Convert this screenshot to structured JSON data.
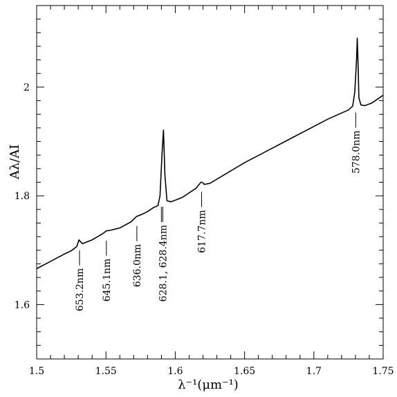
{
  "chart_data": {
    "type": "line",
    "title": "",
    "xlabel": "λ⁻¹(μm⁻¹)",
    "ylabel": "Aλ/AI",
    "xlim": [
      1.5,
      1.75
    ],
    "ylim": [
      1.5,
      2.15
    ],
    "xticks": [
      1.5,
      1.55,
      1.6,
      1.65,
      1.7,
      1.75
    ],
    "xtick_labels": [
      "1.5",
      "1.55",
      "1.6",
      "1.65",
      "1.7",
      "1.75"
    ],
    "yticks": [
      1.6,
      1.8,
      2.0
    ],
    "ytick_labels": [
      "1.6",
      "1.8",
      "2"
    ],
    "grid": false,
    "series": [
      {
        "x": [
          1.5,
          1.52,
          1.525,
          1.529,
          1.5305,
          1.5315,
          1.533,
          1.54,
          1.548,
          1.5505,
          1.552,
          1.56,
          1.568,
          1.572,
          1.576,
          1.58,
          1.584,
          1.5875,
          1.589,
          1.5905,
          1.5915,
          1.5925,
          1.594,
          1.597,
          1.605,
          1.615,
          1.6185,
          1.6195,
          1.621,
          1.625,
          1.65,
          1.68,
          1.71,
          1.725,
          1.728,
          1.7295,
          1.7308,
          1.7313,
          1.7318,
          1.7325,
          1.734,
          1.737,
          1.742,
          1.75
        ],
        "y": [
          1.666,
          1.693,
          1.699,
          1.707,
          1.719,
          1.716,
          1.712,
          1.719,
          1.731,
          1.736,
          1.736,
          1.741,
          1.752,
          1.762,
          1.766,
          1.771,
          1.778,
          1.782,
          1.8,
          1.88,
          1.921,
          1.84,
          1.791,
          1.789,
          1.797,
          1.814,
          1.825,
          1.825,
          1.821,
          1.823,
          1.861,
          1.901,
          1.941,
          1.958,
          1.965,
          1.99,
          2.05,
          2.09,
          2.05,
          1.98,
          1.967,
          1.966,
          1.971,
          1.985
        ]
      }
    ],
    "annotations": [
      {
        "text": "653.2nm",
        "x": 1.5309
      },
      {
        "text": "645.1nm",
        "x": 1.5503
      },
      {
        "text": "636.0nm",
        "x": 1.5723
      },
      {
        "text": "628.1, 628.4nm",
        "x": 1.591
      },
      {
        "text": "617.7nm",
        "x": 1.619
      },
      {
        "text": "578.0nm",
        "x": 1.7302
      }
    ]
  }
}
